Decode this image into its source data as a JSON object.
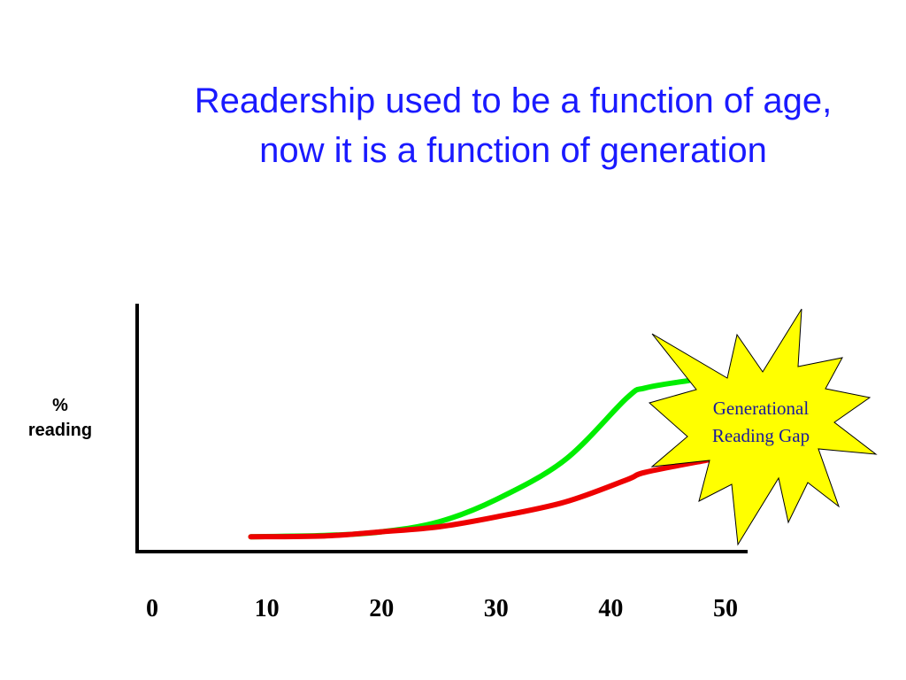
{
  "title": [
    "Readership used to be a function of age,",
    "now it is a function of generation"
  ],
  "chart_data": {
    "type": "line",
    "title": "Readership used to be a function of age, now it is a function of generation",
    "xlabel": "",
    "ylabel": "% reading",
    "xlim": [
      0,
      52
    ],
    "ylim": [
      0,
      100
    ],
    "x_ticks": [
      "0",
      "10",
      "20",
      "30",
      "40",
      "50"
    ],
    "y_ticks": [],
    "grid": false,
    "series": [
      {
        "color": "#00ee00",
        "x": [
          8.6,
          15,
          20,
          25,
          30,
          36,
          41.4,
          43,
          46.8
        ],
        "y": [
          6,
          6.5,
          8,
          12,
          21,
          37,
          62,
          66,
          69
        ]
      },
      {
        "color": "#ee0000",
        "x": [
          8.6,
          15,
          20,
          25,
          30,
          36,
          41.4,
          43,
          48.5
        ],
        "y": [
          6,
          6.3,
          8,
          10,
          14,
          20,
          29,
          32,
          37
        ]
      }
    ],
    "annotation": {
      "text": [
        "Generational",
        "Reading Gap"
      ],
      "shape": "starburst",
      "fill": "#ffff00",
      "text_color": "#1a1a9a"
    }
  }
}
